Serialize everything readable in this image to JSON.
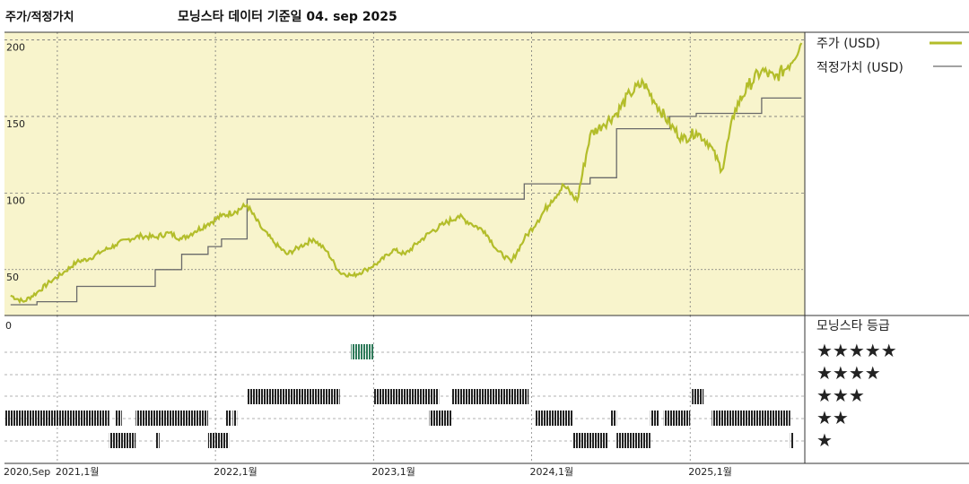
{
  "header": {
    "title": "주가/적정가치",
    "subtitle": "모닝스타 데이터 기준일 04. sep 2025"
  },
  "colors": {
    "plot_background": "#f8f4cc",
    "price_line": "#b3bd2a",
    "fair_value_line": "#6a6a6a",
    "rating_bar": "#222222",
    "five_star_bar": "#2e7a5a"
  },
  "chart_data": [
    {
      "type": "line",
      "title": "주가/적정가치",
      "subtitle": "모닝스타 데이터 기준일 04. sep 2025",
      "ylim": [
        20,
        205
      ],
      "y_ticks": [
        {
          "value": 200,
          "label": "200"
        },
        {
          "value": 150,
          "label": "150"
        },
        {
          "value": 100,
          "label": "100"
        },
        {
          "value": 50,
          "label": "50"
        }
      ],
      "x_ticks": [
        {
          "date": "2020-09",
          "label": "2020,Sep"
        },
        {
          "date": "2021-01",
          "label": "2021,1월"
        },
        {
          "date": "2022-01",
          "label": "2022,1월"
        },
        {
          "date": "2023-01",
          "label": "2023,1월"
        },
        {
          "date": "2024-01",
          "label": "2024,1월"
        },
        {
          "date": "2025-01",
          "label": "2025,1월"
        }
      ],
      "legend": {
        "placement": "right",
        "entries": [
          {
            "label": "주가 (USD)"
          },
          {
            "label": "적정가치 (USD)"
          }
        ]
      },
      "series": [
        {
          "name": "주가 (USD)",
          "points": [
            {
              "date": "2020-09",
              "value": 33
            },
            {
              "date": "2020-10",
              "value": 29
            },
            {
              "date": "2020-11",
              "value": 35
            },
            {
              "date": "2020-12",
              "value": 42
            },
            {
              "date": "2021-01",
              "value": 48
            },
            {
              "date": "2021-02",
              "value": 55
            },
            {
              "date": "2021-03",
              "value": 57
            },
            {
              "date": "2021-04",
              "value": 62
            },
            {
              "date": "2021-05",
              "value": 66
            },
            {
              "date": "2021-06",
              "value": 70
            },
            {
              "date": "2021-07",
              "value": 72
            },
            {
              "date": "2021-08",
              "value": 71
            },
            {
              "date": "2021-09",
              "value": 74
            },
            {
              "date": "2021-10",
              "value": 70
            },
            {
              "date": "2021-11",
              "value": 75
            },
            {
              "date": "2021-12",
              "value": 80
            },
            {
              "date": "2022-01",
              "value": 85
            },
            {
              "date": "2022-02",
              "value": 88
            },
            {
              "date": "2022-03",
              "value": 92
            },
            {
              "date": "2022-04",
              "value": 78
            },
            {
              "date": "2022-05",
              "value": 68
            },
            {
              "date": "2022-06",
              "value": 60
            },
            {
              "date": "2022-07",
              "value": 65
            },
            {
              "date": "2022-08",
              "value": 70
            },
            {
              "date": "2022-09",
              "value": 62
            },
            {
              "date": "2022-10",
              "value": 48
            },
            {
              "date": "2022-11",
              "value": 46
            },
            {
              "date": "2022-12",
              "value": 50
            },
            {
              "date": "2023-01",
              "value": 55
            },
            {
              "date": "2023-02",
              "value": 63
            },
            {
              "date": "2023-03",
              "value": 60
            },
            {
              "date": "2023-04",
              "value": 68
            },
            {
              "date": "2023-05",
              "value": 75
            },
            {
              "date": "2023-06",
              "value": 80
            },
            {
              "date": "2023-07",
              "value": 85
            },
            {
              "date": "2023-08",
              "value": 80
            },
            {
              "date": "2023-09",
              "value": 75
            },
            {
              "date": "2023-10",
              "value": 62
            },
            {
              "date": "2023-11",
              "value": 55
            },
            {
              "date": "2023-12",
              "value": 70
            },
            {
              "date": "2024-01",
              "value": 82
            },
            {
              "date": "2024-02",
              "value": 95
            },
            {
              "date": "2024-03",
              "value": 105
            },
            {
              "date": "2024-04",
              "value": 95
            },
            {
              "date": "2024-05",
              "value": 138
            },
            {
              "date": "2024-06",
              "value": 145
            },
            {
              "date": "2024-07",
              "value": 152
            },
            {
              "date": "2024-08",
              "value": 165
            },
            {
              "date": "2024-09",
              "value": 172
            },
            {
              "date": "2024-10",
              "value": 158
            },
            {
              "date": "2024-11",
              "value": 145
            },
            {
              "date": "2024-12",
              "value": 135
            },
            {
              "date": "2025-01",
              "value": 140
            },
            {
              "date": "2025-02",
              "value": 132
            },
            {
              "date": "2025-03",
              "value": 115
            },
            {
              "date": "2025-04",
              "value": 155
            },
            {
              "date": "2025-05",
              "value": 170
            },
            {
              "date": "2025-06",
              "value": 180
            },
            {
              "date": "2025-07",
              "value": 175
            },
            {
              "date": "2025-08",
              "value": 183
            },
            {
              "date": "2025-09",
              "value": 198
            }
          ]
        },
        {
          "name": "적정가치 (USD)",
          "points": [
            {
              "date": "2020-09",
              "value": 27
            },
            {
              "date": "2020-11",
              "value": 29
            },
            {
              "date": "2021-02",
              "value": 39
            },
            {
              "date": "2021-08",
              "value": 50
            },
            {
              "date": "2021-10",
              "value": 60
            },
            {
              "date": "2021-12",
              "value": 65
            },
            {
              "date": "2022-01",
              "value": 70
            },
            {
              "date": "2022-02",
              "value": 70
            },
            {
              "date": "2022-03",
              "value": 96
            },
            {
              "date": "2023-12",
              "value": 106
            },
            {
              "date": "2024-05",
              "value": 110
            },
            {
              "date": "2024-07",
              "value": 142
            },
            {
              "date": "2024-11",
              "value": 150
            },
            {
              "date": "2025-01",
              "value": 152
            },
            {
              "date": "2025-06",
              "value": 162
            },
            {
              "date": "2025-09",
              "value": 162
            }
          ]
        }
      ]
    },
    {
      "type": "table",
      "title": "모닝스타 등급",
      "rows": [
        {
          "label": "★★★★★",
          "stars": 5,
          "periods": [
            [
              "2022-11-10",
              "2023-01-01"
            ]
          ]
        },
        {
          "label": "★★★★",
          "stars": 4,
          "periods": [
            [
              "2022-03-15",
              "2022-10-15"
            ],
            [
              "2023-01-01",
              "2023-06-01"
            ],
            [
              "2023-07-01",
              "2023-12-25"
            ],
            [
              "2025-01-05",
              "2025-02-01"
            ]
          ]
        },
        {
          "label": "★★★",
          "stars": 3,
          "periods": [
            [
              "2020-09-01",
              "2021-05-01"
            ],
            [
              "2021-05-15",
              "2021-05-30"
            ],
            [
              "2021-07-01",
              "2021-12-15"
            ],
            [
              "2022-02-10",
              "2022-02-20"
            ],
            [
              "2022-01-25",
              "2022-02-05"
            ],
            [
              "2023-05-10",
              "2023-07-01"
            ],
            [
              "2024-01-10",
              "2024-04-05"
            ],
            [
              "2024-07-01",
              "2024-07-15"
            ],
            [
              "2024-10-01",
              "2024-10-20"
            ],
            [
              "2024-11-01",
              "2025-01-01"
            ],
            [
              "2025-02-20",
              "2025-08-20"
            ]
          ]
        },
        {
          "label": "★★",
          "stars": 2,
          "periods": [
            [
              "2021-05-01",
              "2021-07-01"
            ],
            [
              "2021-08-15",
              "2021-08-25"
            ],
            [
              "2021-12-15",
              "2022-02-01"
            ],
            [
              "2024-04-05",
              "2024-06-25"
            ],
            [
              "2024-07-15",
              "2024-10-01"
            ],
            [
              "2025-08-20",
              "2025-08-28"
            ]
          ]
        },
        {
          "label": "★",
          "stars": 1,
          "periods": []
        }
      ]
    }
  ],
  "rating_panel": {
    "zero_label": "0",
    "title": "모닝스타 등급",
    "stars": [
      "★★★★★",
      "★★★★",
      "★★★",
      "★★",
      "★"
    ]
  }
}
